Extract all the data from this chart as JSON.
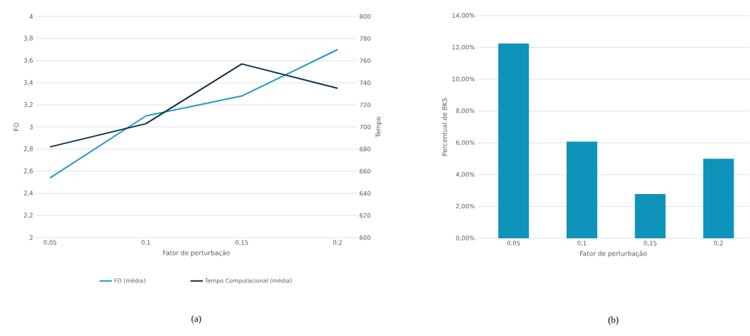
{
  "chart_data": [
    {
      "type": "line",
      "xlabel": "Fator de perturbação",
      "ylabel": "FO",
      "y2label": "Tempo",
      "categories": [
        "0,05",
        "0,1",
        "0,15",
        "0,2"
      ],
      "series": [
        {
          "name": "FO (média)",
          "color": "#1c9cc6",
          "values": [
            2.54,
            3.1,
            3.28,
            3.7
          ]
        },
        {
          "name": "Tempo Computacional (média)",
          "color": "#0e3148",
          "values": [
            682,
            703,
            757,
            735
          ],
          "axis": "y2"
        }
      ],
      "ylim": [
        2,
        4
      ],
      "yticks": [
        2,
        {
          "value": 2.2,
          "label": "2,2"
        },
        {
          "value": 2.4,
          "label": "2,4"
        },
        {
          "value": 2.6,
          "label": "2,6"
        },
        {
          "value": 2.8,
          "label": "2,8"
        },
        3,
        {
          "value": 3.2,
          "label": "3,2"
        },
        {
          "value": 3.4,
          "label": "3,4"
        },
        {
          "value": 3.6,
          "label": "3,6"
        },
        {
          "value": 3.8,
          "label": "3,8"
        },
        4
      ],
      "y2lim": [
        600,
        800
      ],
      "y2ticks": [
        600,
        620,
        640,
        660,
        680,
        700,
        720,
        740,
        760,
        780,
        800
      ],
      "grid": "y",
      "legend": "bottom",
      "annotations": [
        "(a)"
      ]
    },
    {
      "type": "bar",
      "xlabel": "Fator de perturbação",
      "ylabel": "Percentual de BKS",
      "categories": [
        "0,05",
        "0,1",
        "0,15",
        "0,2"
      ],
      "values": [
        12.25,
        6.08,
        2.78,
        5.0
      ],
      "color": "#0e93bb",
      "ylim": [
        0,
        14
      ],
      "yticks": [
        {
          "value": 0,
          "label": "0,00%"
        },
        {
          "value": 2,
          "label": "2,00%"
        },
        {
          "value": 4,
          "label": "4,00%"
        },
        {
          "value": 6,
          "label": "6,00%"
        },
        {
          "value": 8,
          "label": "8,00%"
        },
        {
          "value": 10,
          "label": "10,00%"
        },
        {
          "value": 12,
          "label": "12,00%"
        },
        {
          "value": 14,
          "label": "14,00%"
        }
      ],
      "grid": "y",
      "annotations": [
        "(b)"
      ]
    }
  ]
}
